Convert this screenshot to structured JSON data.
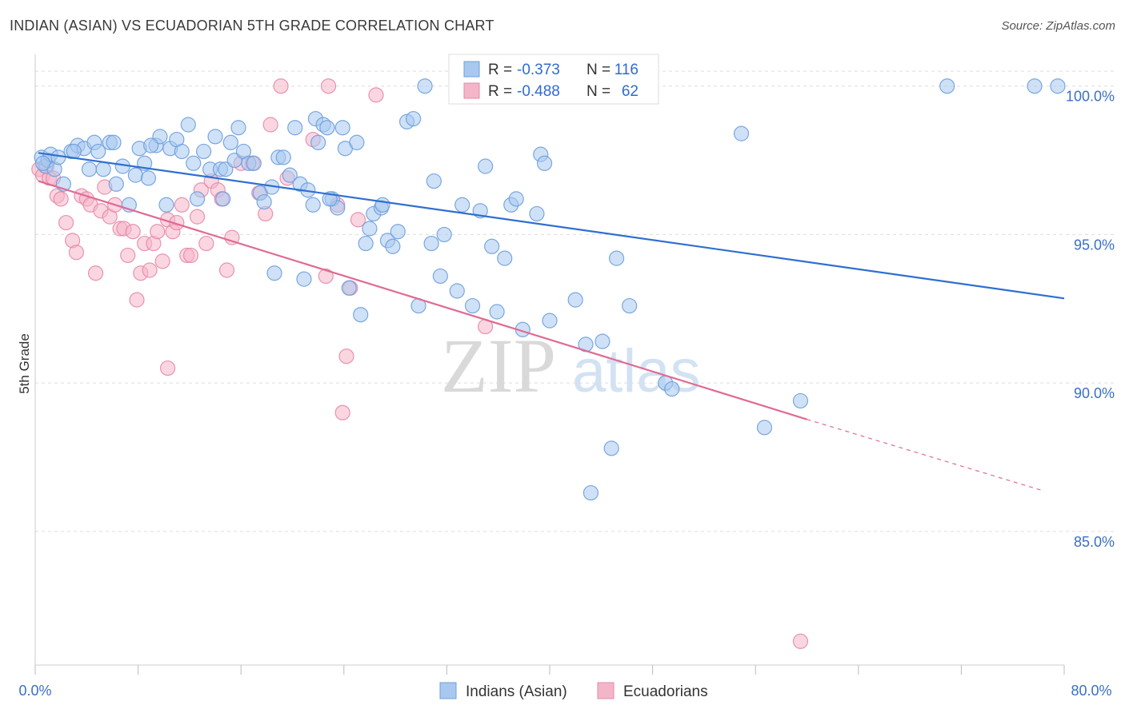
{
  "title": "INDIAN (ASIAN) VS ECUADORIAN 5TH GRADE CORRELATION CHART",
  "source": "Source: ZipAtlas.com",
  "watermark": {
    "zip": "ZIP",
    "atlas": "atlas"
  },
  "colors": {
    "blue_fill": "#a8c8f0",
    "blue_stroke": "#6d9fdc",
    "blue_line": "#2f6fd0",
    "pink_fill": "#f5b5c9",
    "pink_stroke": "#e58aa7",
    "pink_line": "#e06a93",
    "grid": "#dddddd",
    "tick_label": "#3a6fc4"
  },
  "legend": {
    "r_label": "R =",
    "n_label": "N =",
    "blue": {
      "r": "-0.373",
      "n": "116"
    },
    "pink": {
      "r": "-0.488",
      "n": "62"
    }
  },
  "chart_data": {
    "type": "scatter",
    "xlabel": "",
    "ylabel": "5th Grade",
    "xlim": [
      0,
      80
    ],
    "ylim": [
      80.5,
      100.8
    ],
    "x_tick_labels": [
      "0.0%",
      "80.0%"
    ],
    "y_ticks": [
      85,
      90,
      95,
      100
    ],
    "y_tick_labels": [
      "85.0%",
      "90.0%",
      "95.0%",
      "100.0%"
    ],
    "grid": true,
    "legend_position": "top-center",
    "series": [
      {
        "name": "Indians (Asian)",
        "color": "#a8c8f0",
        "trend": {
          "x": [
            0,
            80
          ],
          "y": [
            97.75,
            92.85
          ],
          "dashed_from": null
        },
        "points": [
          [
            0.5,
            97.6
          ],
          [
            0.8,
            97.3
          ],
          [
            1.0,
            97.5
          ],
          [
            1.2,
            97.7
          ],
          [
            1.5,
            97.2
          ],
          [
            1.8,
            97.6
          ],
          [
            2.2,
            96.7
          ],
          [
            2.8,
            97.8
          ],
          [
            3.3,
            98.0
          ],
          [
            3.8,
            97.9
          ],
          [
            4.2,
            97.2
          ],
          [
            4.6,
            98.1
          ],
          [
            4.9,
            97.8
          ],
          [
            5.3,
            97.2
          ],
          [
            5.8,
            98.1
          ],
          [
            6.1,
            98.1
          ],
          [
            6.8,
            97.3
          ],
          [
            7.3,
            96.0
          ],
          [
            7.8,
            97.0
          ],
          [
            8.1,
            97.9
          ],
          [
            8.5,
            97.4
          ],
          [
            8.8,
            96.9
          ],
          [
            9.4,
            98.0
          ],
          [
            9.7,
            98.3
          ],
          [
            10.2,
            96.0
          ],
          [
            10.5,
            97.9
          ],
          [
            11.0,
            98.2
          ],
          [
            11.4,
            97.8
          ],
          [
            11.9,
            98.7
          ],
          [
            12.3,
            97.4
          ],
          [
            12.6,
            96.2
          ],
          [
            13.1,
            97.8
          ],
          [
            13.6,
            97.2
          ],
          [
            14.0,
            98.3
          ],
          [
            14.4,
            97.2
          ],
          [
            14.8,
            97.2
          ],
          [
            15.2,
            98.1
          ],
          [
            15.5,
            97.5
          ],
          [
            15.8,
            98.6
          ],
          [
            16.2,
            97.8
          ],
          [
            16.6,
            97.4
          ],
          [
            17.0,
            97.4
          ],
          [
            17.5,
            96.4
          ],
          [
            17.8,
            96.1
          ],
          [
            18.4,
            96.6
          ],
          [
            18.6,
            93.7
          ],
          [
            18.9,
            97.6
          ],
          [
            19.3,
            97.6
          ],
          [
            19.8,
            97.0
          ],
          [
            20.2,
            98.6
          ],
          [
            20.6,
            96.7
          ],
          [
            20.9,
            93.5
          ],
          [
            21.2,
            96.5
          ],
          [
            21.6,
            96.0
          ],
          [
            21.8,
            98.9
          ],
          [
            22.0,
            98.1
          ],
          [
            22.4,
            98.7
          ],
          [
            22.7,
            98.6
          ],
          [
            23.1,
            96.2
          ],
          [
            23.5,
            95.9
          ],
          [
            23.9,
            98.6
          ],
          [
            24.1,
            97.9
          ],
          [
            24.4,
            93.2
          ],
          [
            25.0,
            98.1
          ],
          [
            25.3,
            92.3
          ],
          [
            25.7,
            94.7
          ],
          [
            26.0,
            95.2
          ],
          [
            26.3,
            95.7
          ],
          [
            26.9,
            95.9
          ],
          [
            27.0,
            96.0
          ],
          [
            27.4,
            94.8
          ],
          [
            27.8,
            94.6
          ],
          [
            28.2,
            95.1
          ],
          [
            28.9,
            98.8
          ],
          [
            29.4,
            98.9
          ],
          [
            29.8,
            92.6
          ],
          [
            30.3,
            100.0
          ],
          [
            30.8,
            94.7
          ],
          [
            31.0,
            96.8
          ],
          [
            31.5,
            93.6
          ],
          [
            31.8,
            95.0
          ],
          [
            32.8,
            93.1
          ],
          [
            33.2,
            96.0
          ],
          [
            34.0,
            92.6
          ],
          [
            34.6,
            95.8
          ],
          [
            35.0,
            97.3
          ],
          [
            35.5,
            94.6
          ],
          [
            35.9,
            92.4
          ],
          [
            36.5,
            94.2
          ],
          [
            37.0,
            96.0
          ],
          [
            37.4,
            96.2
          ],
          [
            37.9,
            91.8
          ],
          [
            39.0,
            95.7
          ],
          [
            39.3,
            97.7
          ],
          [
            39.6,
            97.4
          ],
          [
            40.0,
            92.1
          ],
          [
            42.0,
            92.8
          ],
          [
            42.8,
            91.3
          ],
          [
            43.2,
            86.3
          ],
          [
            44.1,
            91.4
          ],
          [
            44.8,
            87.8
          ],
          [
            45.2,
            94.2
          ],
          [
            46.2,
            92.6
          ],
          [
            47.6,
            100.0
          ],
          [
            49.0,
            90.0
          ],
          [
            49.5,
            89.8
          ],
          [
            54.9,
            98.4
          ],
          [
            56.7,
            88.5
          ],
          [
            59.5,
            89.4
          ],
          [
            70.9,
            100.0
          ],
          [
            77.7,
            100.0
          ],
          [
            79.5,
            100.0
          ],
          [
            0.6,
            97.4
          ],
          [
            3.0,
            97.8
          ],
          [
            6.3,
            96.7
          ],
          [
            9.0,
            98.0
          ],
          [
            14.6,
            96.2
          ],
          [
            22.9,
            96.2
          ]
        ]
      },
      {
        "name": "Ecuadorians",
        "color": "#f5b5c9",
        "trend": {
          "x": [
            0,
            80
          ],
          "y": [
            96.8,
            86.1
          ],
          "dashed_from": 60
        },
        "points": [
          [
            0.3,
            97.2
          ],
          [
            0.6,
            97.0
          ],
          [
            0.9,
            97.3
          ],
          [
            1.1,
            96.9
          ],
          [
            1.4,
            96.9
          ],
          [
            1.7,
            96.3
          ],
          [
            2.0,
            96.2
          ],
          [
            2.4,
            95.4
          ],
          [
            2.9,
            94.8
          ],
          [
            3.2,
            94.4
          ],
          [
            3.6,
            96.3
          ],
          [
            4.0,
            96.2
          ],
          [
            4.3,
            96.0
          ],
          [
            4.7,
            93.7
          ],
          [
            5.1,
            95.8
          ],
          [
            5.4,
            96.6
          ],
          [
            5.8,
            95.6
          ],
          [
            6.2,
            96.0
          ],
          [
            6.6,
            95.2
          ],
          [
            6.9,
            95.2
          ],
          [
            7.2,
            94.3
          ],
          [
            7.6,
            95.1
          ],
          [
            7.9,
            92.8
          ],
          [
            8.2,
            93.7
          ],
          [
            8.5,
            94.7
          ],
          [
            8.9,
            93.8
          ],
          [
            9.2,
            94.7
          ],
          [
            9.5,
            95.1
          ],
          [
            9.9,
            94.1
          ],
          [
            10.3,
            95.5
          ],
          [
            10.7,
            95.1
          ],
          [
            11.0,
            95.4
          ],
          [
            11.4,
            96.0
          ],
          [
            11.8,
            94.3
          ],
          [
            12.1,
            94.3
          ],
          [
            12.6,
            95.6
          ],
          [
            12.9,
            96.5
          ],
          [
            13.3,
            94.7
          ],
          [
            13.7,
            96.8
          ],
          [
            14.2,
            96.5
          ],
          [
            14.5,
            96.2
          ],
          [
            14.9,
            93.8
          ],
          [
            15.3,
            94.9
          ],
          [
            16.0,
            97.4
          ],
          [
            16.9,
            97.4
          ],
          [
            17.4,
            96.4
          ],
          [
            17.9,
            95.7
          ],
          [
            18.3,
            98.7
          ],
          [
            19.1,
            100.0
          ],
          [
            19.6,
            96.9
          ],
          [
            21.6,
            98.2
          ],
          [
            22.6,
            93.6
          ],
          [
            22.8,
            100.0
          ],
          [
            23.5,
            96.0
          ],
          [
            23.9,
            89.0
          ],
          [
            24.2,
            90.9
          ],
          [
            24.5,
            93.2
          ],
          [
            25.1,
            95.5
          ],
          [
            26.5,
            99.7
          ],
          [
            35.0,
            91.9
          ],
          [
            59.5,
            81.3
          ],
          [
            10.3,
            90.5
          ]
        ]
      }
    ]
  },
  "bottom_legend": [
    "Indians (Asian)",
    "Ecuadorians"
  ]
}
